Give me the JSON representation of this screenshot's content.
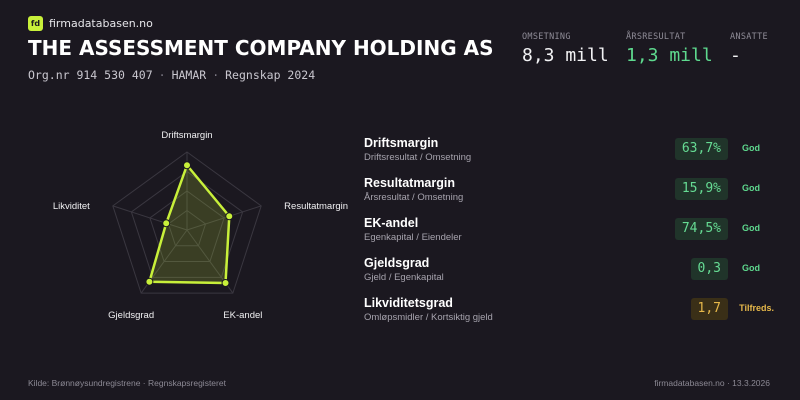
{
  "brand": {
    "logo_text": "fd",
    "name": "firmadatabasen.no"
  },
  "company": {
    "name": "THE ASSESSMENT COMPANY HOLDING AS",
    "orgnr": "Org.nr 914 530 407",
    "location": "HAMAR",
    "period": "Regnskap 2024",
    "separator": "·"
  },
  "kpis": {
    "revenue": {
      "label": "OMSETNING",
      "value": "8,3 mill"
    },
    "result": {
      "label": "ÅRSRESULTAT",
      "value": "1,3 mill"
    },
    "employees": {
      "label": "ANSATTE",
      "value": "-"
    }
  },
  "chart_data": {
    "type": "radar",
    "axes": [
      "Driftsmargin",
      "Resultatmargin",
      "EK-andel",
      "Gjeldsgrad",
      "Likviditet"
    ],
    "values": [
      0.83,
      0.57,
      0.84,
      0.82,
      0.28
    ],
    "rings": 4,
    "accent": "#c8f03a"
  },
  "metrics": [
    {
      "name": "Driftsmargin",
      "desc": "Driftsresultat / Omsetning",
      "value": "63,7%",
      "status": "God",
      "level": "good"
    },
    {
      "name": "Resultatmargin",
      "desc": "Årsresultat / Omsetning",
      "value": "15,9%",
      "status": "God",
      "level": "good"
    },
    {
      "name": "EK-andel",
      "desc": "Egenkapital / Eiendeler",
      "value": "74,5%",
      "status": "God",
      "level": "good"
    },
    {
      "name": "Gjeldsgrad",
      "desc": "Gjeld / Egenkapital",
      "value": "0,3",
      "status": "God",
      "level": "good"
    },
    {
      "name": "Likviditetsgrad",
      "desc": "Omløpsmidler / Kortsiktig gjeld",
      "value": "1,7",
      "status": "Tilfreds.",
      "level": "ok"
    }
  ],
  "footer": {
    "source": "Kilde: Brønnøysundregistrene · Regnskapsregisteret",
    "site_date": "firmadatabasen.no · 13.3.2026"
  },
  "colors": {
    "background": "#1b1820",
    "accent": "#c8f03a",
    "good": "#5ed98e",
    "ok": "#e6b84a"
  }
}
